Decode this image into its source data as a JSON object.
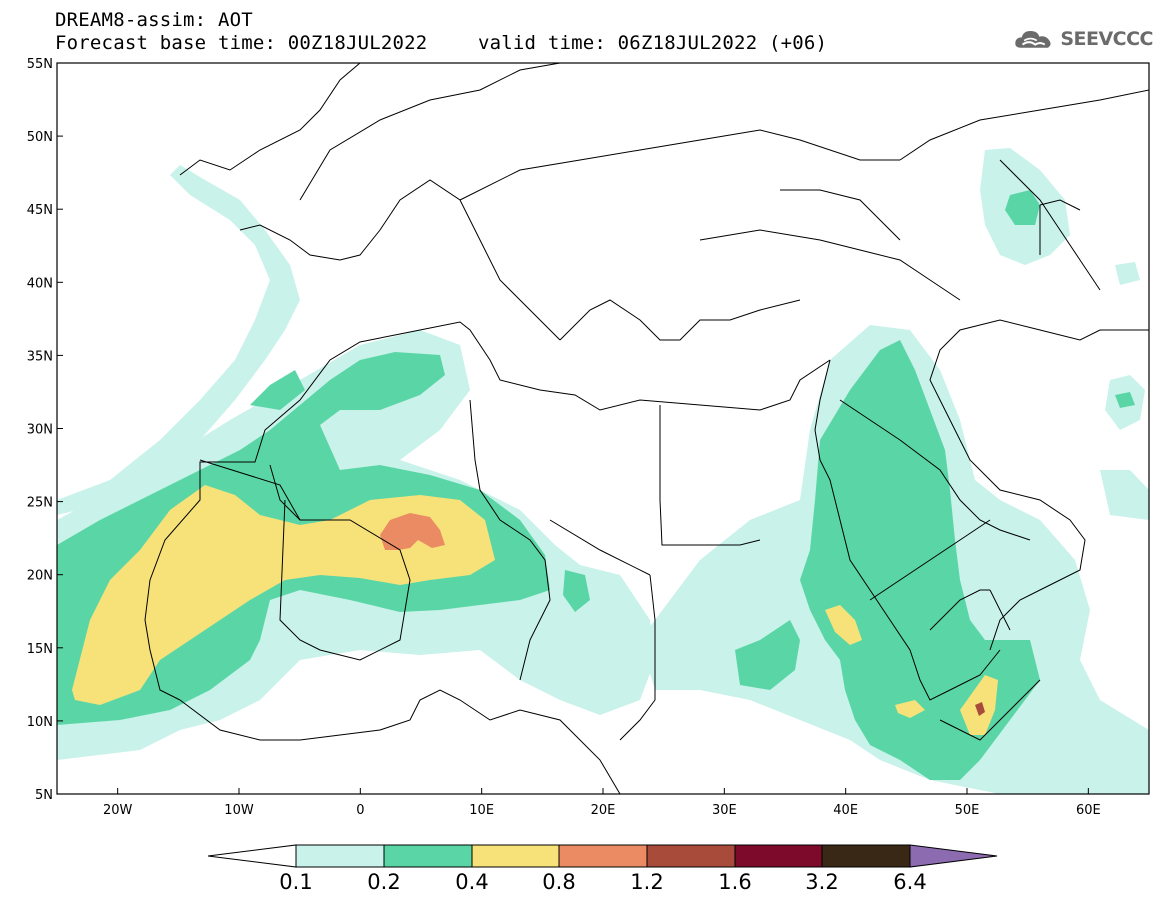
{
  "header": {
    "line1": "DREAM8-assim: AOT",
    "line2": "Forecast base time: 00Z18JUL2022",
    "valid": "valid time: 06Z18JUL2022 (+06)"
  },
  "logo": {
    "text": "SEEVCCC",
    "icon": "cloud-icon"
  },
  "map": {
    "lat_labels": [
      "55N",
      "50N",
      "45N",
      "40N",
      "35N",
      "30N",
      "25N",
      "20N",
      "15N",
      "10N",
      "5N"
    ],
    "lon_labels": [
      "20W",
      "10W",
      "0",
      "10E",
      "20E",
      "30E",
      "40E",
      "50E",
      "60E"
    ],
    "lon_range": [
      -25,
      65
    ],
    "lat_range": [
      5,
      55
    ]
  },
  "colorbar": {
    "labels": [
      "0.1",
      "0.2",
      "0.4",
      "0.8",
      "1.2",
      "1.6",
      "3.2",
      "6.4"
    ],
    "colors": [
      "#ffffff",
      "#c8f2ea",
      "#5ad6a6",
      "#f7e27a",
      "#ea8b63",
      "#a84b3a",
      "#7d0a2a",
      "#3a2817",
      "#8c6bb0"
    ]
  }
}
